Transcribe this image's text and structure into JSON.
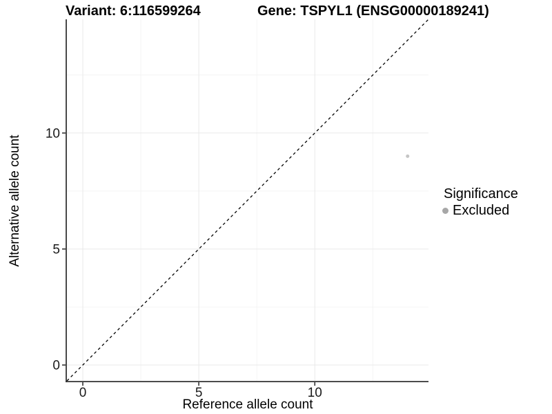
{
  "chart_data": {
    "type": "scatter",
    "title_left": "Variant: 6:116599264",
    "title_right": "Gene: TSPYL1 (ENSG00000189241)",
    "xlabel": "Reference allele count",
    "ylabel": "Alternative allele count",
    "xlim": [
      -0.684,
      14.9
    ],
    "ylim": [
      -0.684,
      14.9
    ],
    "x_ticks": [
      0,
      5,
      10
    ],
    "y_ticks": [
      0,
      5,
      10
    ],
    "x_minor_ticks": [
      2.5,
      7.5,
      12.5
    ],
    "y_minor_ticks": [
      2.5,
      7.5,
      12.5
    ],
    "grid": {
      "major_color": "#e9e9e9",
      "minor_color": "#f4f4f4",
      "background": "#ffffff"
    },
    "axis_color": "#333333",
    "tick_label_color": "#1a1a1a",
    "identity_line": {
      "style": "dashed",
      "slope": 1,
      "intercept": 0,
      "color": "#000000"
    },
    "points": [
      {
        "x": 14,
        "y": 9,
        "series": "Excluded",
        "color": "#c5c5c5"
      }
    ],
    "legend": {
      "title": "Significance",
      "position": "right",
      "entries": [
        {
          "label": "Excluded",
          "color": "#a7a7a7"
        }
      ]
    }
  }
}
